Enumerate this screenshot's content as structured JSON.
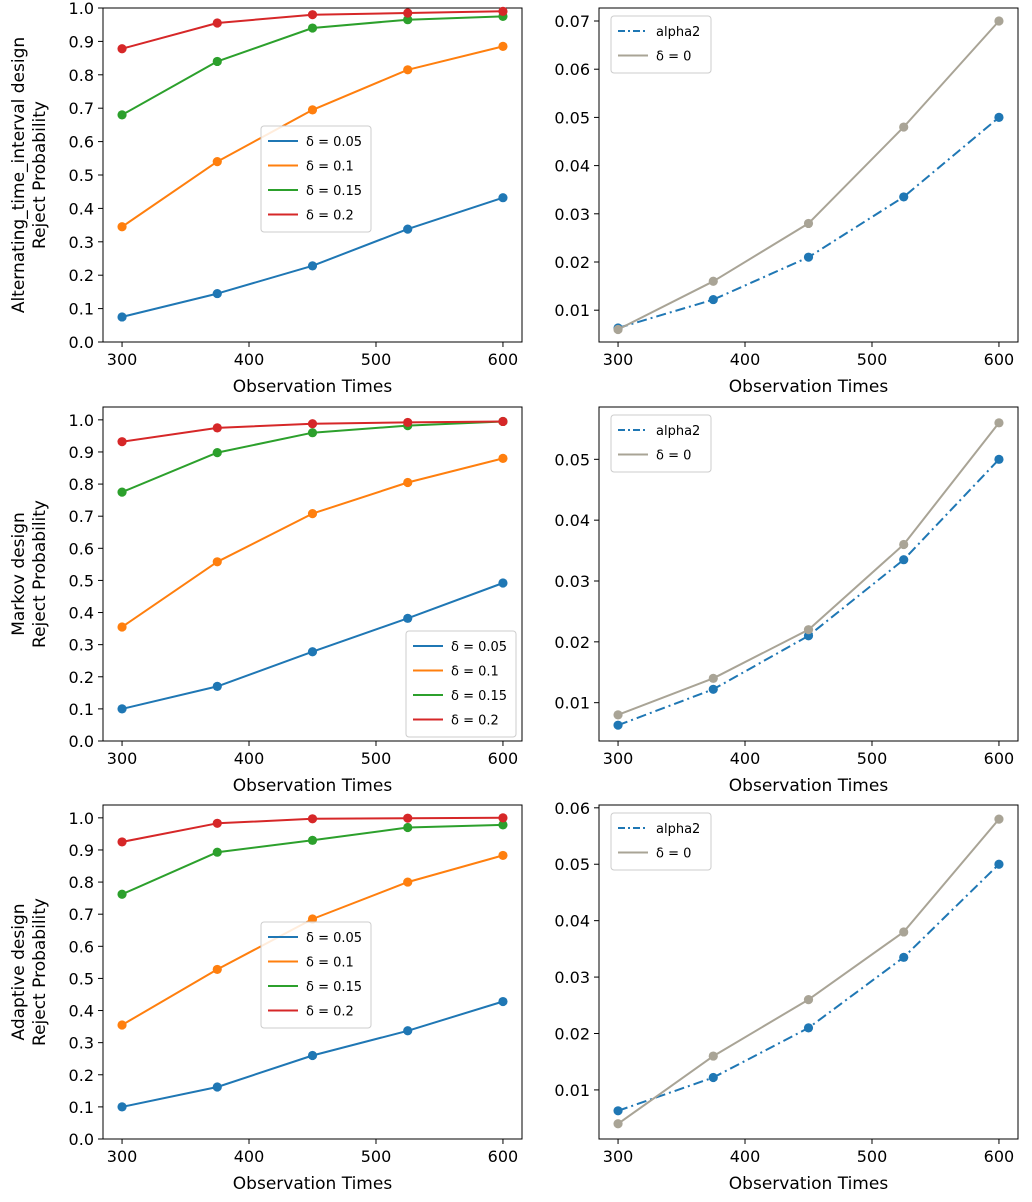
{
  "colors": {
    "blue": "#1f77b4",
    "orange": "#ff7f0e",
    "green": "#2ca02c",
    "red": "#d62728",
    "gray": "#a9a496"
  },
  "chart_data": [
    {
      "type": "line",
      "row_label": "Alternating_time_interval design",
      "ylabel": "Reject Probability",
      "xlabel": "Observation Times",
      "x": [
        300,
        375,
        450,
        525,
        600
      ],
      "xlim": [
        285,
        615
      ],
      "xticks": [
        300,
        400,
        500,
        600
      ],
      "xtick_labels": [
        "300",
        "400",
        "500",
        "600"
      ],
      "ylim": [
        0.0,
        1.0
      ],
      "yticks": [
        0.0,
        0.1,
        0.2,
        0.3,
        0.4,
        0.5,
        0.6,
        0.7,
        0.8,
        0.9,
        1.0
      ],
      "ytick_labels": [
        "0.0",
        "0.1",
        "0.2",
        "0.3",
        "0.4",
        "0.5",
        "0.6",
        "0.7",
        "0.8",
        "0.9",
        "1.0"
      ],
      "legend_position": "center",
      "series": [
        {
          "name": "δ = 0.05",
          "color": "blue",
          "dash": "solid",
          "values": [
            0.075,
            0.145,
            0.228,
            0.338,
            0.432
          ]
        },
        {
          "name": "δ = 0.1",
          "color": "orange",
          "dash": "solid",
          "values": [
            0.345,
            0.54,
            0.695,
            0.815,
            0.885
          ]
        },
        {
          "name": "δ = 0.15",
          "color": "green",
          "dash": "solid",
          "values": [
            0.68,
            0.84,
            0.94,
            0.965,
            0.975
          ]
        },
        {
          "name": "δ = 0.2",
          "color": "red",
          "dash": "solid",
          "values": [
            0.878,
            0.955,
            0.98,
            0.985,
            0.99
          ]
        }
      ]
    },
    {
      "type": "line",
      "xlabel": "Observation Times",
      "x": [
        300,
        375,
        450,
        525,
        600
      ],
      "xlim": [
        285,
        615
      ],
      "xticks": [
        300,
        400,
        500,
        600
      ],
      "xtick_labels": [
        "300",
        "400",
        "500",
        "600"
      ],
      "ylim": [
        0.0034,
        0.0727
      ],
      "yticks": [
        0.01,
        0.02,
        0.03,
        0.04,
        0.05,
        0.06,
        0.07
      ],
      "ytick_labels": [
        "0.01",
        "0.02",
        "0.03",
        "0.04",
        "0.05",
        "0.06",
        "0.07"
      ],
      "legend_position": "top-left",
      "series": [
        {
          "name": "alpha2",
          "color": "blue",
          "dash": "dashdot",
          "values": [
            0.0063,
            0.0122,
            0.021,
            0.0335,
            0.05
          ]
        },
        {
          "name": "δ = 0",
          "color": "gray",
          "dash": "solid",
          "values": [
            0.006,
            0.016,
            0.028,
            0.048,
            0.07
          ]
        }
      ]
    },
    {
      "type": "line",
      "row_label": "Markov design",
      "ylabel": "Reject Probability",
      "xlabel": "Observation Times",
      "x": [
        300,
        375,
        450,
        525,
        600
      ],
      "xlim": [
        285,
        615
      ],
      "xticks": [
        300,
        400,
        500,
        600
      ],
      "xtick_labels": [
        "300",
        "400",
        "500",
        "600"
      ],
      "ylim": [
        0.0,
        1.04
      ],
      "yticks": [
        0.0,
        0.1,
        0.2,
        0.3,
        0.4,
        0.5,
        0.6,
        0.7,
        0.8,
        0.9,
        1.0
      ],
      "ytick_labels": [
        "0.0",
        "0.1",
        "0.2",
        "0.3",
        "0.4",
        "0.5",
        "0.6",
        "0.7",
        "0.8",
        "0.9",
        "1.0"
      ],
      "legend_position": "bottom-right",
      "series": [
        {
          "name": "δ = 0.05",
          "color": "blue",
          "dash": "solid",
          "values": [
            0.1,
            0.17,
            0.278,
            0.382,
            0.492
          ]
        },
        {
          "name": "δ = 0.1",
          "color": "orange",
          "dash": "solid",
          "values": [
            0.355,
            0.558,
            0.708,
            0.805,
            0.88
          ]
        },
        {
          "name": "δ = 0.15",
          "color": "green",
          "dash": "solid",
          "values": [
            0.775,
            0.898,
            0.96,
            0.982,
            0.995
          ]
        },
        {
          "name": "δ = 0.2",
          "color": "red",
          "dash": "solid",
          "values": [
            0.932,
            0.975,
            0.988,
            0.992,
            0.995
          ]
        }
      ]
    },
    {
      "type": "line",
      "xlabel": "Observation Times",
      "x": [
        300,
        375,
        450,
        525,
        600
      ],
      "xlim": [
        285,
        615
      ],
      "xticks": [
        300,
        400,
        500,
        600
      ],
      "xtick_labels": [
        "300",
        "400",
        "500",
        "600"
      ],
      "ylim": [
        0.0037,
        0.0586
      ],
      "yticks": [
        0.01,
        0.02,
        0.03,
        0.04,
        0.05
      ],
      "ytick_labels": [
        "0.01",
        "0.02",
        "0.03",
        "0.04",
        "0.05"
      ],
      "legend_position": "top-left",
      "series": [
        {
          "name": "alpha2",
          "color": "blue",
          "dash": "dashdot",
          "values": [
            0.0063,
            0.0122,
            0.021,
            0.0335,
            0.05
          ]
        },
        {
          "name": "δ = 0",
          "color": "gray",
          "dash": "solid",
          "values": [
            0.008,
            0.014,
            0.022,
            0.036,
            0.056
          ]
        }
      ]
    },
    {
      "type": "line",
      "row_label": "Adaptive design",
      "ylabel": "Reject Probability",
      "xlabel": "Observation Times",
      "x": [
        300,
        375,
        450,
        525,
        600
      ],
      "xlim": [
        285,
        615
      ],
      "xticks": [
        300,
        400,
        500,
        600
      ],
      "xtick_labels": [
        "300",
        "400",
        "500",
        "600"
      ],
      "ylim": [
        0.0,
        1.04
      ],
      "yticks": [
        0.0,
        0.1,
        0.2,
        0.3,
        0.4,
        0.5,
        0.6,
        0.7,
        0.8,
        0.9,
        1.0
      ],
      "ytick_labels": [
        "0.0",
        "0.1",
        "0.2",
        "0.3",
        "0.4",
        "0.5",
        "0.6",
        "0.7",
        "0.8",
        "0.9",
        "1.0"
      ],
      "legend_position": "center",
      "series": [
        {
          "name": "δ = 0.05",
          "color": "blue",
          "dash": "solid",
          "values": [
            0.1,
            0.162,
            0.26,
            0.337,
            0.428
          ]
        },
        {
          "name": "δ = 0.1",
          "color": "orange",
          "dash": "solid",
          "values": [
            0.355,
            0.528,
            0.685,
            0.8,
            0.883
          ]
        },
        {
          "name": "δ = 0.15",
          "color": "green",
          "dash": "solid",
          "values": [
            0.762,
            0.893,
            0.93,
            0.97,
            0.978
          ]
        },
        {
          "name": "δ = 0.2",
          "color": "red",
          "dash": "solid",
          "values": [
            0.925,
            0.983,
            0.997,
            0.999,
            1.0
          ]
        }
      ]
    },
    {
      "type": "line",
      "xlabel": "Observation Times",
      "x": [
        300,
        375,
        450,
        525,
        600
      ],
      "xlim": [
        285,
        615
      ],
      "xticks": [
        300,
        400,
        500,
        600
      ],
      "xtick_labels": [
        "300",
        "400",
        "500",
        "600"
      ],
      "ylim": [
        0.0013,
        0.0605
      ],
      "yticks": [
        0.01,
        0.02,
        0.03,
        0.04,
        0.05,
        0.06
      ],
      "ytick_labels": [
        "0.01",
        "0.02",
        "0.03",
        "0.04",
        "0.05",
        "0.06"
      ],
      "legend_position": "top-left",
      "series": [
        {
          "name": "alpha2",
          "color": "blue",
          "dash": "dashdot",
          "values": [
            0.0063,
            0.0122,
            0.021,
            0.0335,
            0.05
          ]
        },
        {
          "name": "δ = 0",
          "color": "gray",
          "dash": "solid",
          "values": [
            0.004,
            0.016,
            0.026,
            0.038,
            0.058
          ]
        }
      ]
    }
  ]
}
